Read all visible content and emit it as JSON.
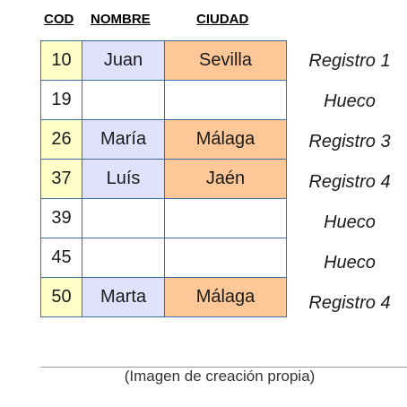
{
  "headers": {
    "cod": "COD",
    "nombre": "NOMBRE",
    "ciudad": "CIUDAD"
  },
  "rows": [
    {
      "cod": "10",
      "nombre": "Juan",
      "ciudad": "Sevilla",
      "label": "Registro 1",
      "filled": true
    },
    {
      "cod": "19",
      "nombre": "",
      "ciudad": "",
      "label": "Hueco",
      "filled": false
    },
    {
      "cod": "26",
      "nombre": "María",
      "ciudad": "Málaga",
      "label": "Registro 3",
      "filled": true
    },
    {
      "cod": "37",
      "nombre": "Luís",
      "ciudad": "Jaén",
      "label": "Registro 4",
      "filled": true
    },
    {
      "cod": "39",
      "nombre": "",
      "ciudad": "",
      "label": "Hueco",
      "filled": false
    },
    {
      "cod": "45",
      "nombre": "",
      "ciudad": "",
      "label": "Hueco",
      "filled": false
    },
    {
      "cod": "50",
      "nombre": "Marta",
      "ciudad": "Málaga",
      "label": "Registro 4",
      "filled": true
    }
  ],
  "caption": "(Imagen de creación propia)",
  "colors": {
    "cod_fill": "#ffffc8",
    "nombre_fill": "#e0e2fc",
    "ciudad_fill": "#fdc797",
    "border": "#3a6ea5"
  }
}
